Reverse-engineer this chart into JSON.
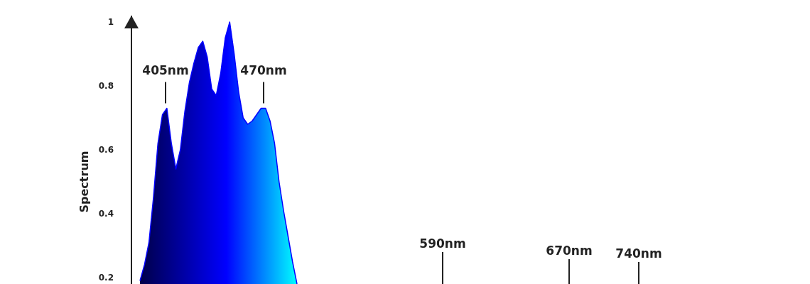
{
  "chart_data": {
    "type": "area",
    "ylabel": "Spectrum",
    "categories": [
      null,
      null,
      null,
      null,
      null,
      null,
      null,
      null,
      null,
      null,
      null,
      null,
      null,
      null,
      null,
      null,
      null,
      null,
      null,
      null,
      null,
      null,
      null,
      null,
      null,
      null,
      null,
      null,
      null,
      null,
      null,
      null,
      null,
      null,
      null,
      null
    ],
    "ylim": [
      0.18,
      1.02
    ],
    "yticks": [
      0.2,
      0.4,
      0.6,
      0.8,
      1
    ],
    "tick_labels": "y",
    "series": [
      {
        "color": "#0000ff",
        "values": [
          0.19,
          0.24,
          0.31,
          0.45,
          0.62,
          0.71,
          0.73,
          0.62,
          0.54,
          0.6,
          0.72,
          0.81,
          0.87,
          0.92,
          0.94,
          0.89,
          0.79,
          0.77,
          0.84,
          0.95,
          1.0,
          0.9,
          0.78,
          0.7,
          0.68,
          0.69,
          0.71,
          0.73,
          0.73,
          0.69,
          0.62,
          0.5,
          0.41,
          0.33,
          0.25,
          0.18
        ]
      }
    ],
    "annotations": [
      {
        "text": "405nm",
        "y": 0.73
      },
      {
        "text": "470nm",
        "y": 0.73
      },
      {
        "text": "590nm"
      },
      {
        "text": "670nm"
      },
      {
        "text": "740nm"
      }
    ]
  }
}
